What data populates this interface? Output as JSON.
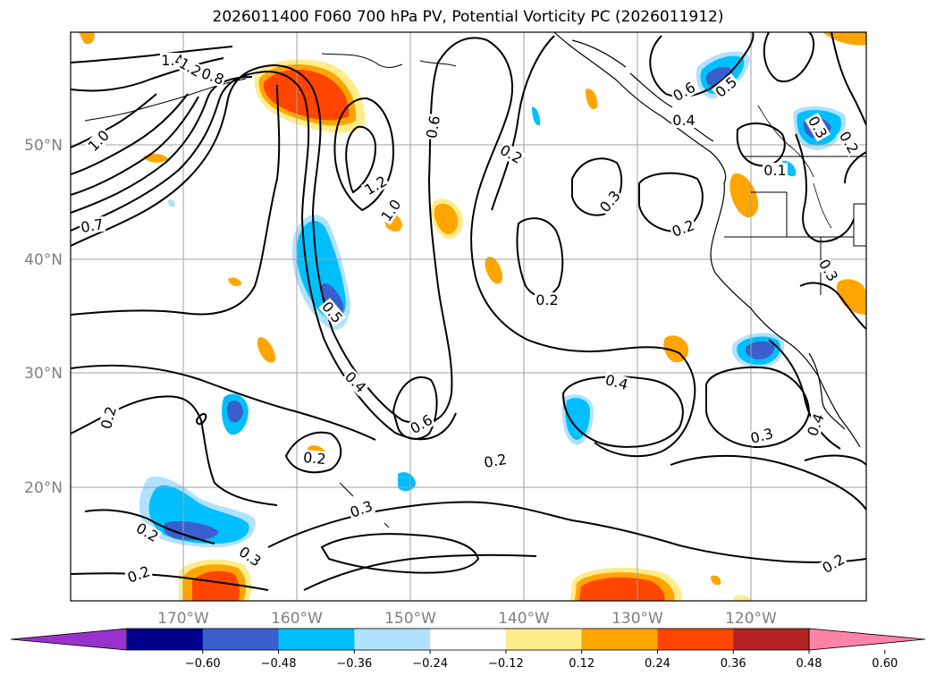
{
  "title": "2026011400 F060 700 hPa PV, Potential Vorticity PC (2026011912)",
  "map": {
    "lat_labels": [
      "50°N",
      "40°N",
      "30°N",
      "20°N"
    ],
    "lon_labels": [
      "170°W",
      "160°W",
      "150°W",
      "140°W",
      "130°W",
      "120°W"
    ],
    "contour_labels": [
      {
        "text": "1.4",
        "rot": 0
      },
      {
        "text": "1.2",
        "rot": 30
      },
      {
        "text": "0.8",
        "rot": 20
      },
      {
        "text": "1.0",
        "rot": -45
      },
      {
        "text": "0.7",
        "rot": -10
      },
      {
        "text": "1.2",
        "rot": -30
      },
      {
        "text": "1.0",
        "rot": -55
      },
      {
        "text": "0.6",
        "rot": -80
      },
      {
        "text": "0.2",
        "rot": 30
      },
      {
        "text": "0.3",
        "rot": -50
      },
      {
        "text": "0.2",
        "rot": -20
      },
      {
        "text": "0.2",
        "rot": 0
      },
      {
        "text": "0.6",
        "rot": -30
      },
      {
        "text": "0.5",
        "rot": -40
      },
      {
        "text": "0.4",
        "rot": 0
      },
      {
        "text": "0.1",
        "rot": 0
      },
      {
        "text": "0.3",
        "rot": 60
      },
      {
        "text": "0.2",
        "rot": 60
      },
      {
        "text": "0.3",
        "rot": 60
      },
      {
        "text": "0.5",
        "rot": 50
      },
      {
        "text": "0.4",
        "rot": 45
      },
      {
        "text": "0.6",
        "rot": -30
      },
      {
        "text": "0.4",
        "rot": 15
      },
      {
        "text": "0.2",
        "rot": -75
      },
      {
        "text": "0.2",
        "rot": 30
      },
      {
        "text": "0.3",
        "rot": 35
      },
      {
        "text": "0.3",
        "rot": -20
      },
      {
        "text": "0.2",
        "rot": -10
      },
      {
        "text": "0.3",
        "rot": -15
      },
      {
        "text": "0.2",
        "rot": 5
      },
      {
        "text": "0.2",
        "rot": -20
      },
      {
        "text": "0.2",
        "rot": -30
      },
      {
        "text": "0.4",
        "rot": -70
      }
    ]
  },
  "colorbar": {
    "ticks": [
      "−0.60",
      "−0.48",
      "−0.36",
      "−0.24",
      "−0.12",
      "0.12",
      "0.24",
      "0.36",
      "0.48",
      "0.60"
    ],
    "colors": [
      "#9932cc",
      "#00008b",
      "#3a5fcd",
      "#00bfff",
      "#b0e2ff",
      "#ffffff",
      "#ffec8b",
      "#ffa500",
      "#ff4500",
      "#b22222",
      "#ff82ab"
    ]
  }
}
